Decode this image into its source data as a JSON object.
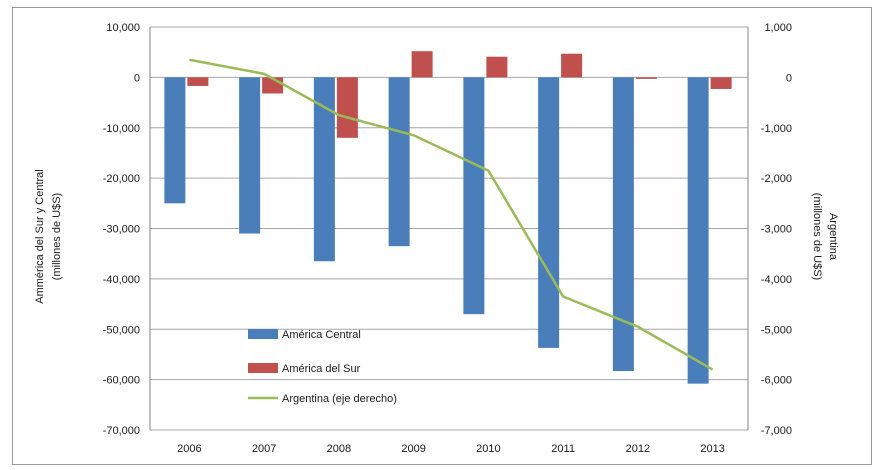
{
  "chart_data": {
    "type": "bar",
    "categories": [
      "2006",
      "2007",
      "2008",
      "2009",
      "2010",
      "2011",
      "2012",
      "2013"
    ],
    "series": [
      {
        "name": "América Central",
        "type": "bar",
        "axis": "left",
        "color": "#4a7ebb",
        "values": [
          -25000,
          -31000,
          -36500,
          -33500,
          -47000,
          -53700,
          -58300,
          -60800
        ]
      },
      {
        "name": "América del Sur",
        "type": "bar",
        "axis": "left",
        "color": "#c0504d",
        "values": [
          -1700,
          -3200,
          -12000,
          5200,
          4100,
          4700,
          -300,
          -2300
        ]
      },
      {
        "name": "Argentina (eje derecho)",
        "type": "line",
        "axis": "right",
        "color": "#9bbb59",
        "values": [
          350,
          70,
          -750,
          -1150,
          -1850,
          -4350,
          -4950,
          -5800
        ]
      }
    ],
    "ylabel": [
      "Ammérica del Sur y Central",
      "(millones de U$S)"
    ],
    "y2label": [
      "Argentina",
      "(millones de U$S)"
    ],
    "ylim": [
      -70000,
      10000
    ],
    "y2lim": [
      -7000,
      1000
    ],
    "yticks": [
      "10,000",
      "0",
      "-10,000",
      "-20,000",
      "-30,000",
      "-40,000",
      "-50,000",
      "-60,000",
      "-70,000"
    ],
    "y2ticks": [
      "1,000",
      "0",
      "-1,000",
      "-2,000",
      "-3,000",
      "-4,000",
      "-5,000",
      "-6,000",
      "-7,000"
    ],
    "grid": true,
    "legend": "inside lower-left"
  }
}
